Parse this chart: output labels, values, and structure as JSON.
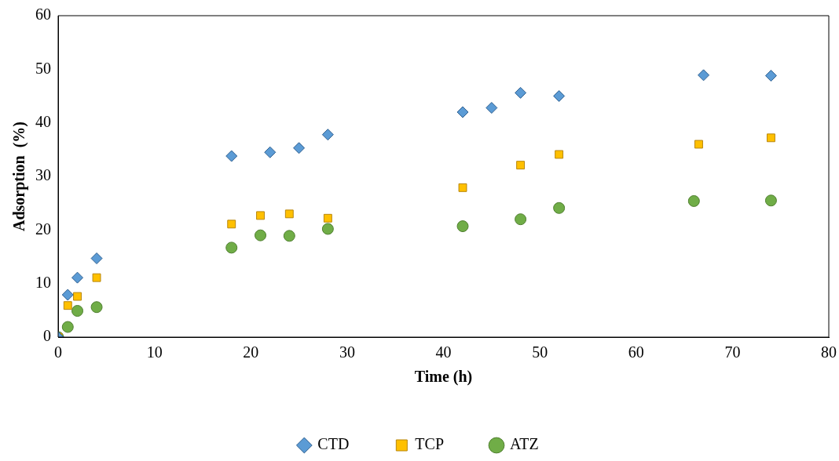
{
  "chart_data": {
    "type": "scatter",
    "xlabel": "Time (h)",
    "ylabel": "Adsorption  (%)",
    "xlim": [
      0,
      80
    ],
    "xticks": [
      0,
      10,
      20,
      30,
      40,
      50,
      60,
      70,
      80
    ],
    "ylim": [
      0,
      60
    ],
    "yticks": [
      0,
      10,
      20,
      30,
      40,
      50,
      60
    ],
    "grid": false,
    "legend": "bottom",
    "series": [
      {
        "name": "CTD",
        "color": "#5b9bd5",
        "marker": "diamond",
        "x": [
          0,
          1,
          2,
          4,
          18,
          22,
          25,
          28,
          42,
          45,
          48,
          52,
          67,
          74
        ],
        "values": [
          0,
          7.9,
          11.1,
          14.7,
          33.8,
          34.5,
          35.3,
          37.8,
          42,
          42.8,
          45.6,
          45,
          48.9,
          48.8
        ]
      },
      {
        "name": "TCP",
        "color": "#ffc000",
        "marker": "square",
        "x": [
          0,
          1,
          2,
          4,
          18,
          21,
          24,
          28,
          42,
          48,
          52,
          66.5,
          74
        ],
        "values": [
          0,
          5.9,
          7.6,
          11.1,
          21.1,
          22.7,
          23,
          22.2,
          27.9,
          32.1,
          34.1,
          36,
          37.2
        ]
      },
      {
        "name": "ATZ",
        "color": "#70ad47",
        "marker": "circle",
        "x": [
          0,
          1,
          2,
          4,
          18,
          21,
          24,
          28,
          42,
          48,
          52,
          66,
          74
        ],
        "values": [
          0,
          1.9,
          4.9,
          5.6,
          16.7,
          19,
          18.9,
          20.2,
          20.7,
          22,
          24.1,
          25.4,
          25.5
        ]
      }
    ]
  }
}
